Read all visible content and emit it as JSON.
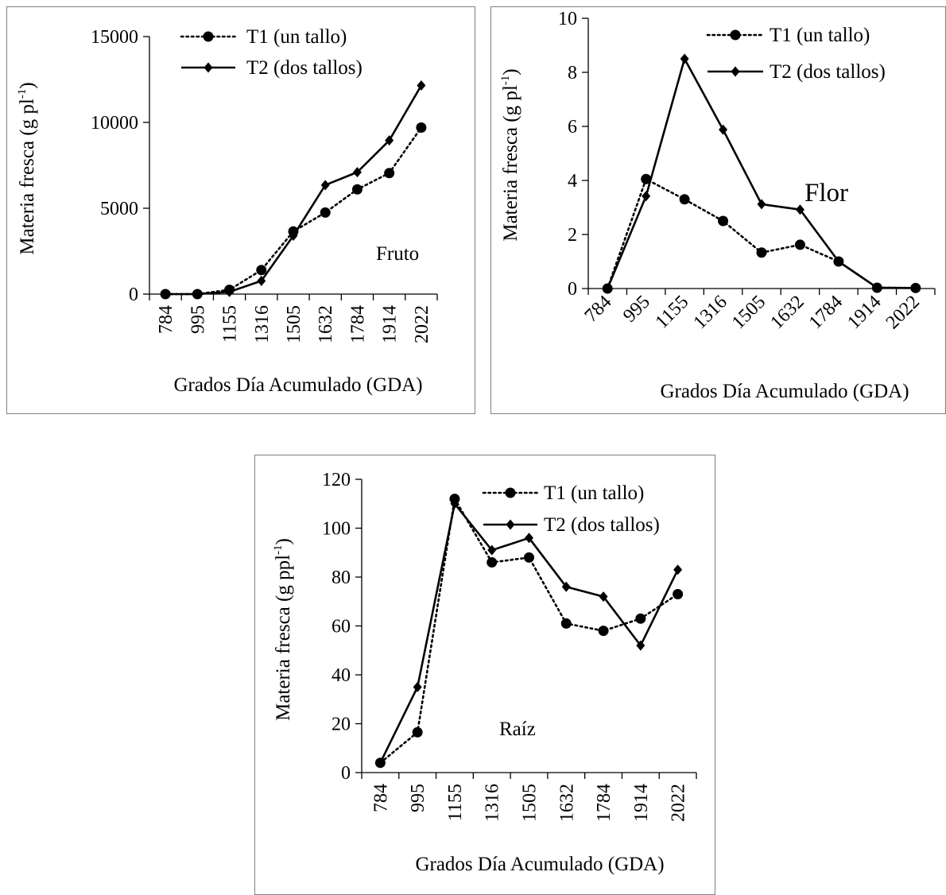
{
  "chart_data": [
    {
      "type": "line",
      "categories": [
        "784",
        "995",
        "1155",
        "1316",
        "1505",
        "1632",
        "1784",
        "1914",
        "2022"
      ],
      "series": [
        {
          "name": "T1 (un tallo)",
          "values": [
            0,
            0,
            250,
            1400,
            3650,
            4750,
            6100,
            7050,
            9700
          ]
        },
        {
          "name": "T2 (dos tallos)",
          "values": [
            0,
            0,
            130,
            770,
            3400,
            6350,
            7100,
            8950,
            12150
          ]
        }
      ],
      "annotation": "Fruto",
      "xlabel": "Grados Día Acumulado (GDA)",
      "ylabel_main": "Materia fresca (g pl",
      "ylabel_sup": "-1",
      "ylabel_end": ")",
      "ylim": [
        0,
        15000
      ],
      "yticks": [
        0,
        5000,
        10000,
        15000
      ],
      "tick_rotation": "vertical",
      "legend_position": "top-right",
      "grid": false
    },
    {
      "type": "line",
      "categories": [
        "784",
        "995",
        "1155",
        "1316",
        "1505",
        "1632",
        "1784",
        "1914",
        "2022"
      ],
      "series": [
        {
          "name": "T1 (un tallo)",
          "values": [
            0,
            4.05,
            3.3,
            2.5,
            1.33,
            1.62,
            1.0,
            0.03,
            0.02
          ]
        },
        {
          "name": "T2 (dos tallos)",
          "values": [
            0,
            3.42,
            8.5,
            5.88,
            3.12,
            2.92,
            1.0,
            0.03,
            0.02
          ]
        }
      ],
      "annotation": "Flor",
      "xlabel": "Grados Día Acumulado (GDA)",
      "ylabel_main": "Materia fresca (g pl",
      "ylabel_sup": "-1",
      "ylabel_end": ")",
      "ylim": [
        0,
        10
      ],
      "yticks": [
        0,
        2,
        4,
        6,
        8,
        10
      ],
      "tick_rotation": "diagonal",
      "legend_position": "top-right",
      "grid": false
    },
    {
      "type": "line",
      "categories": [
        "784",
        "995",
        "1155",
        "1316",
        "1505",
        "1632",
        "1784",
        "1914",
        "2022"
      ],
      "series": [
        {
          "name": "T1 (un tallo)",
          "values": [
            4,
            16.5,
            112,
            86,
            88,
            61,
            58,
            63,
            73
          ]
        },
        {
          "name": "T2 (dos tallos)",
          "values": [
            4,
            35,
            110,
            91,
            96,
            76,
            72,
            52,
            83
          ]
        }
      ],
      "annotation": "Raíz",
      "xlabel": "Grados Día Acumulado (GDA)",
      "ylabel_main": "Materia fresca (g ppl",
      "ylabel_sup": "-1",
      "ylabel_end": ")",
      "ylim": [
        0,
        120
      ],
      "yticks": [
        0,
        20,
        40,
        60,
        80,
        100,
        120
      ],
      "tick_rotation": "vertical",
      "legend_position": "top-right",
      "grid": false
    }
  ]
}
